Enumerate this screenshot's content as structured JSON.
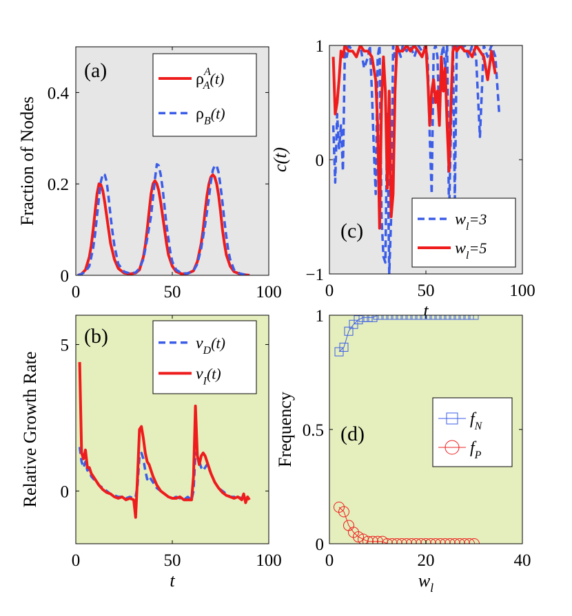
{
  "colors": {
    "red": "#ee1c1c",
    "blue": "#3b5de7",
    "grey_bg": "#e6e6e6",
    "green_bg": "#e5eebd"
  },
  "chart_data": [
    {
      "id": "a",
      "type": "line",
      "tag": "(a)",
      "xlabel": "",
      "ylabel": "Fraction of Nodes",
      "xlim": [
        0,
        100
      ],
      "ylim": [
        0,
        0.5
      ],
      "xticks": [
        0,
        50,
        100
      ],
      "xtick_labels": [
        "0",
        "50",
        "100"
      ],
      "yticks": [
        0,
        0.2,
        0.4
      ],
      "ytick_labels": [
        "0",
        "0.2",
        "0.4"
      ],
      "legend": [
        {
          "symbol": "ρ",
          "sub": "A",
          "sup": "A",
          "arg": "(t)"
        },
        {
          "symbol": "ρ",
          "sub": "B",
          "sup": "",
          "arg": "(t)"
        }
      ],
      "series": [
        {
          "name": "ρ_A^A(t)",
          "style": "solid-red",
          "x": [
            1,
            3,
            5,
            7,
            8,
            9,
            10,
            11,
            12,
            13,
            14,
            15,
            16,
            17,
            18,
            20,
            22,
            25,
            28,
            31,
            33,
            35,
            36,
            37,
            38,
            39,
            40,
            41,
            42,
            43,
            44,
            45,
            46,
            47,
            48,
            50,
            52,
            55,
            58,
            61,
            63,
            65,
            66,
            67,
            68,
            69,
            70,
            71,
            72,
            73,
            74,
            75,
            76,
            77,
            78,
            80,
            82,
            85,
            88,
            90
          ],
          "y": [
            0.0,
            0.003,
            0.012,
            0.04,
            0.065,
            0.1,
            0.14,
            0.178,
            0.2,
            0.198,
            0.185,
            0.16,
            0.13,
            0.1,
            0.07,
            0.035,
            0.015,
            0.005,
            0.003,
            0.005,
            0.012,
            0.04,
            0.065,
            0.1,
            0.14,
            0.178,
            0.2,
            0.207,
            0.2,
            0.185,
            0.16,
            0.13,
            0.1,
            0.07,
            0.045,
            0.02,
            0.008,
            0.003,
            0.004,
            0.01,
            0.03,
            0.07,
            0.1,
            0.14,
            0.175,
            0.2,
            0.215,
            0.22,
            0.215,
            0.2,
            0.175,
            0.14,
            0.1,
            0.07,
            0.045,
            0.02,
            0.008,
            0.003,
            0.001,
            0.0
          ]
        },
        {
          "name": "ρ_B(t)",
          "style": "dashed-blue",
          "x": [
            1,
            3,
            5,
            7,
            9,
            10,
            11,
            12,
            13,
            14,
            15,
            16,
            17,
            18,
            19,
            20,
            22,
            25,
            28,
            31,
            33,
            35,
            37,
            39,
            40,
            41,
            42,
            43,
            44,
            45,
            46,
            47,
            48,
            49,
            50,
            52,
            55,
            58,
            61,
            63,
            65,
            67,
            69,
            70,
            71,
            72,
            73,
            74,
            75,
            76,
            77,
            78,
            79,
            80,
            82,
            85,
            88,
            90
          ],
          "y": [
            0.0,
            0.003,
            0.008,
            0.02,
            0.06,
            0.09,
            0.13,
            0.17,
            0.205,
            0.222,
            0.22,
            0.205,
            0.17,
            0.13,
            0.095,
            0.065,
            0.025,
            0.008,
            0.004,
            0.006,
            0.015,
            0.035,
            0.08,
            0.13,
            0.17,
            0.21,
            0.243,
            0.24,
            0.22,
            0.19,
            0.15,
            0.11,
            0.08,
            0.05,
            0.03,
            0.012,
            0.004,
            0.004,
            0.01,
            0.025,
            0.06,
            0.11,
            0.17,
            0.205,
            0.23,
            0.24,
            0.24,
            0.225,
            0.195,
            0.16,
            0.12,
            0.085,
            0.055,
            0.035,
            0.012,
            0.004,
            0.001,
            0.0
          ]
        }
      ]
    },
    {
      "id": "b",
      "type": "line",
      "tag": "(b)",
      "xlabel": "t",
      "ylabel": "Relative Growth Rate",
      "xlim": [
        0,
        100
      ],
      "ylim": [
        -1.8,
        6
      ],
      "xticks": [
        0,
        50,
        100
      ],
      "xtick_labels": [
        "0",
        "50",
        "100"
      ],
      "yticks": [
        0,
        5
      ],
      "ytick_labels": [
        "0",
        "5"
      ],
      "legend": [
        {
          "symbol": "v",
          "sub": "D",
          "sup": "",
          "arg": "(t)"
        },
        {
          "symbol": "v",
          "sub": "I",
          "sup": "",
          "arg": "(t)"
        }
      ],
      "series": [
        {
          "name": "v_D(t)",
          "style": "dashed-blue",
          "x": [
            2,
            3,
            4,
            5,
            6,
            7,
            8,
            10,
            12,
            14,
            16,
            18,
            20,
            22,
            24,
            26,
            28,
            30,
            31,
            32,
            33,
            34,
            35,
            36,
            37,
            38,
            40,
            42,
            44,
            46,
            48,
            50,
            52,
            54,
            56,
            58,
            60,
            61,
            62,
            63,
            64,
            65,
            66,
            67,
            68,
            70,
            72,
            74,
            76,
            78,
            80,
            82,
            84,
            86,
            88,
            90
          ],
          "y": [
            1.5,
            1.0,
            0.8,
            1.0,
            0.7,
            0.75,
            0.5,
            0.35,
            0.2,
            0.1,
            0.0,
            -0.1,
            -0.15,
            -0.2,
            -0.2,
            -0.25,
            -0.2,
            -0.25,
            -0.2,
            0.2,
            1.2,
            1.3,
            1.1,
            0.7,
            0.4,
            0.5,
            0.3,
            0.1,
            0.0,
            -0.1,
            -0.2,
            -0.25,
            -0.2,
            -0.25,
            -0.3,
            -0.2,
            -0.3,
            0.0,
            1.3,
            1.2,
            1.0,
            0.8,
            0.7,
            0.8,
            0.9,
            0.6,
            0.3,
            0.1,
            0.0,
            -0.1,
            -0.2,
            -0.2,
            -0.2,
            -0.25,
            -0.2,
            -0.2
          ]
        },
        {
          "name": "v_I(t)",
          "style": "solid-red",
          "x": [
            2,
            3,
            4,
            5,
            6,
            7,
            8,
            10,
            12,
            14,
            16,
            18,
            20,
            22,
            24,
            26,
            28,
            30,
            31,
            32,
            33,
            34,
            35,
            36,
            37,
            38,
            40,
            42,
            44,
            46,
            48,
            50,
            52,
            54,
            56,
            58,
            60,
            61,
            62,
            63,
            64,
            65,
            66,
            67,
            68,
            70,
            72,
            74,
            76,
            78,
            80,
            82,
            84,
            86,
            87,
            88,
            89,
            90
          ],
          "y": [
            4.4,
            1.3,
            1.1,
            1.4,
            0.8,
            0.8,
            0.6,
            0.4,
            0.2,
            0.05,
            -0.05,
            -0.1,
            -0.2,
            -0.25,
            -0.2,
            -0.3,
            -0.25,
            -0.3,
            -0.9,
            0.5,
            2.1,
            2.2,
            1.8,
            1.3,
            1.0,
            0.9,
            0.5,
            0.2,
            0.0,
            -0.1,
            -0.2,
            -0.25,
            -0.25,
            -0.2,
            -0.3,
            -0.3,
            -0.3,
            0.5,
            2.9,
            1.2,
            0.9,
            1.2,
            1.3,
            1.2,
            1.0,
            0.6,
            0.3,
            0.1,
            -0.05,
            -0.15,
            -0.2,
            -0.25,
            -0.2,
            -0.3,
            -0.1,
            -0.4,
            -0.2,
            -0.3
          ]
        }
      ]
    },
    {
      "id": "c",
      "type": "line",
      "tag": "(c)",
      "xlabel": "t",
      "ylabel": "c(t)",
      "xlim": [
        0,
        100
      ],
      "ylim": [
        -1,
        1
      ],
      "xticks": [
        0,
        50,
        100
      ],
      "xtick_labels": [
        "0",
        "50",
        "100"
      ],
      "yticks": [
        -1,
        0,
        1
      ],
      "ytick_labels": [
        "−1",
        "0",
        "1"
      ],
      "legend": [
        {
          "symbol": "w",
          "sub": "l",
          "sup": "",
          "arg": "=3"
        },
        {
          "symbol": "w",
          "sub": "l",
          "sup": "",
          "arg": "=5"
        }
      ],
      "series": [
        {
          "name": "w_l=3",
          "style": "dashed-blue",
          "x": [
            2,
            3,
            4,
            5,
            6,
            7,
            8,
            9,
            10,
            12,
            14,
            16,
            18,
            20,
            21,
            22,
            23,
            24,
            25,
            26,
            27,
            28,
            29,
            30,
            31,
            32,
            33,
            34,
            35,
            36,
            37,
            38,
            40,
            42,
            44,
            46,
            48,
            50,
            51,
            52,
            53,
            54,
            55,
            56,
            57,
            58,
            59,
            60,
            61,
            62,
            63,
            64,
            65,
            66,
            68,
            70,
            72,
            74,
            76,
            78,
            80,
            82,
            84,
            86,
            88
          ],
          "y": [
            0.3,
            -0.2,
            0.4,
            0.1,
            0.3,
            -0.1,
            0.95,
            0.9,
            1.0,
            0.95,
            0.9,
            1.0,
            0.8,
            0.9,
            1.0,
            0.6,
            0.1,
            -0.3,
            0.9,
            1.0,
            -0.5,
            -0.85,
            -0.9,
            0.4,
            -1.0,
            -0.5,
            1.0,
            0.9,
            1.0,
            0.95,
            0.9,
            1.0,
            0.95,
            1.0,
            0.9,
            1.0,
            0.95,
            1.0,
            0.85,
            0.2,
            -0.3,
            0.95,
            1.0,
            0.9,
            0.3,
            0.9,
            1.0,
            0.8,
            1.0,
            -0.5,
            0.3,
            1.0,
            -0.35,
            1.0,
            0.95,
            1.0,
            0.9,
            1.0,
            0.9,
            0.2,
            1.0,
            0.9,
            1.0,
            0.9,
            0.4
          ]
        },
        {
          "name": "w_l=5",
          "style": "solid-red",
          "x": [
            2,
            3,
            4,
            5,
            6,
            7,
            8,
            10,
            12,
            14,
            16,
            18,
            20,
            22,
            24,
            25,
            26,
            27,
            28,
            29,
            30,
            31,
            32,
            33,
            34,
            35,
            36,
            38,
            40,
            42,
            44,
            46,
            48,
            50,
            51,
            52,
            53,
            54,
            55,
            56,
            57,
            58,
            59,
            60,
            61,
            62,
            63,
            64,
            65,
            66,
            68,
            70,
            72,
            74,
            76,
            78,
            80,
            82,
            84,
            86
          ],
          "y": [
            0.9,
            0.4,
            0.5,
            0.7,
            0.95,
            0.9,
            1.0,
            0.95,
            0.95,
            0.9,
            1.0,
            0.95,
            0.95,
            0.9,
            0.7,
            0.3,
            -0.6,
            0.5,
            0.9,
            0.6,
            -0.25,
            0.6,
            -0.5,
            -0.3,
            0.6,
            1.0,
            0.95,
            0.95,
            1.0,
            0.95,
            1.0,
            0.95,
            0.9,
            1.0,
            0.7,
            0.3,
            0.6,
            0.7,
            0.5,
            0.6,
            0.3,
            0.9,
            0.6,
            0.8,
            0.3,
            -0.1,
            0.5,
            0.95,
            1.0,
            0.95,
            1.0,
            0.95,
            0.95,
            0.9,
            1.0,
            0.95,
            0.9,
            0.7,
            0.95,
            0.75
          ]
        }
      ]
    },
    {
      "id": "d",
      "type": "line",
      "tag": "(d)",
      "xlabel": "w",
      "xlabel_sub": "l",
      "ylabel": "Frequency",
      "xlim": [
        0,
        40
      ],
      "ylim": [
        0,
        1
      ],
      "xticks": [
        0,
        20,
        40
      ],
      "xtick_labels": [
        "0",
        "20",
        "40"
      ],
      "yticks": [
        0,
        0.5,
        1
      ],
      "ytick_labels": [
        "0",
        "0.5",
        "1"
      ],
      "legend": [
        {
          "symbol": "f",
          "sub": "N",
          "sup": "",
          "arg": ""
        },
        {
          "symbol": "f",
          "sub": "P",
          "sup": "",
          "arg": ""
        }
      ],
      "series": [
        {
          "name": "f_N",
          "style": "squares-blue",
          "x": [
            2,
            3,
            4,
            5,
            6,
            7,
            8,
            9,
            10,
            11,
            12,
            13,
            14,
            15,
            16,
            17,
            18,
            19,
            20,
            21,
            22,
            23,
            24,
            25,
            26,
            27,
            28,
            29,
            30
          ],
          "y": [
            0.84,
            0.86,
            0.93,
            0.96,
            0.98,
            0.99,
            0.99,
            0.99,
            1.0,
            1.0,
            1.0,
            1.0,
            1.0,
            1.0,
            1.0,
            1.0,
            1.0,
            1.0,
            1.0,
            1.0,
            1.0,
            1.0,
            1.0,
            1.0,
            1.0,
            1.0,
            1.0,
            1.0,
            1.0
          ]
        },
        {
          "name": "f_P",
          "style": "circles-red",
          "x": [
            2,
            3,
            4,
            5,
            6,
            7,
            8,
            9,
            10,
            11,
            12,
            13,
            14,
            15,
            16,
            17,
            18,
            19,
            20,
            21,
            22,
            23,
            24,
            25,
            26,
            27,
            28,
            29,
            30
          ],
          "y": [
            0.16,
            0.14,
            0.08,
            0.05,
            0.03,
            0.02,
            0.01,
            0.01,
            0.01,
            0.01,
            0.0,
            0.0,
            0.0,
            0.0,
            0.0,
            0.0,
            0.0,
            0.0,
            0.0,
            0.0,
            0.0,
            0.0,
            0.0,
            0.0,
            0.0,
            0.0,
            0.0,
            0.0,
            0.0
          ]
        }
      ]
    }
  ]
}
